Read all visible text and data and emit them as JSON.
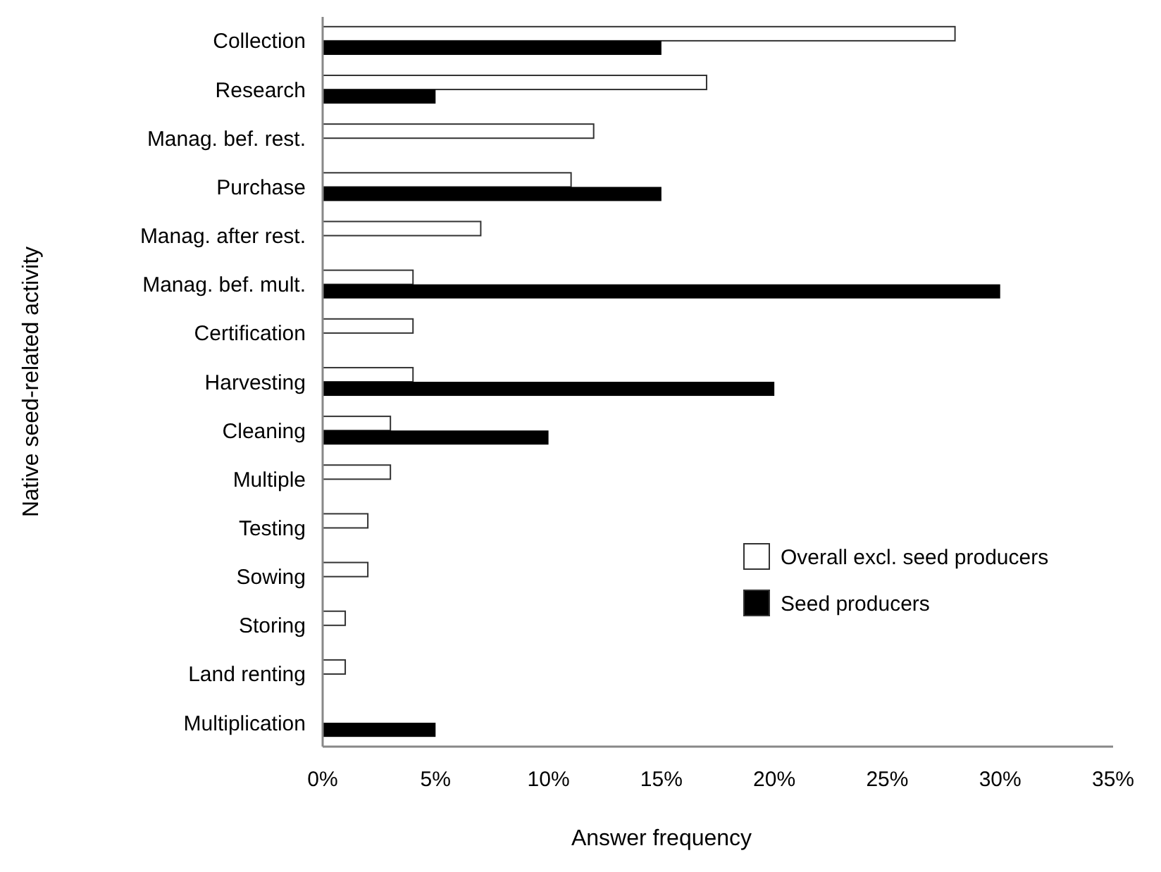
{
  "chart_data": {
    "type": "bar",
    "orientation": "horizontal",
    "xlabel": "Answer frequency",
    "ylabel": "Native seed-related activity",
    "categories": [
      "Collection",
      "Research",
      "Manag. bef. rest.",
      "Purchase",
      "Manag. after rest.",
      "Manag. bef. mult.",
      "Certification",
      "Harvesting",
      "Cleaning",
      "Multiple",
      "Testing",
      "Sowing",
      "Storing",
      "Land renting",
      "Multiplication"
    ],
    "series": [
      {
        "name": "Overall excl. seed producers",
        "color": "#ffffff",
        "values": [
          28,
          17,
          12,
          11,
          7,
          4,
          4,
          4,
          3,
          3,
          2,
          2,
          1,
          1,
          null
        ]
      },
      {
        "name": "Seed producers",
        "color": "#000000",
        "values": [
          15,
          5,
          null,
          15,
          null,
          30,
          null,
          20,
          10,
          null,
          null,
          null,
          null,
          null,
          5
        ]
      }
    ],
    "xlim": [
      0,
      35
    ],
    "xticks": [
      {
        "value": 0,
        "label": "0%"
      },
      {
        "value": 5,
        "label": "5%"
      },
      {
        "value": 10,
        "label": "10%"
      },
      {
        "value": 15,
        "label": "15%"
      },
      {
        "value": 20,
        "label": "20%"
      },
      {
        "value": 25,
        "label": "25%"
      },
      {
        "value": 30,
        "label": "30%"
      },
      {
        "value": 35,
        "label": "35%"
      }
    ],
    "grid": false,
    "legend": "bottom right"
  }
}
